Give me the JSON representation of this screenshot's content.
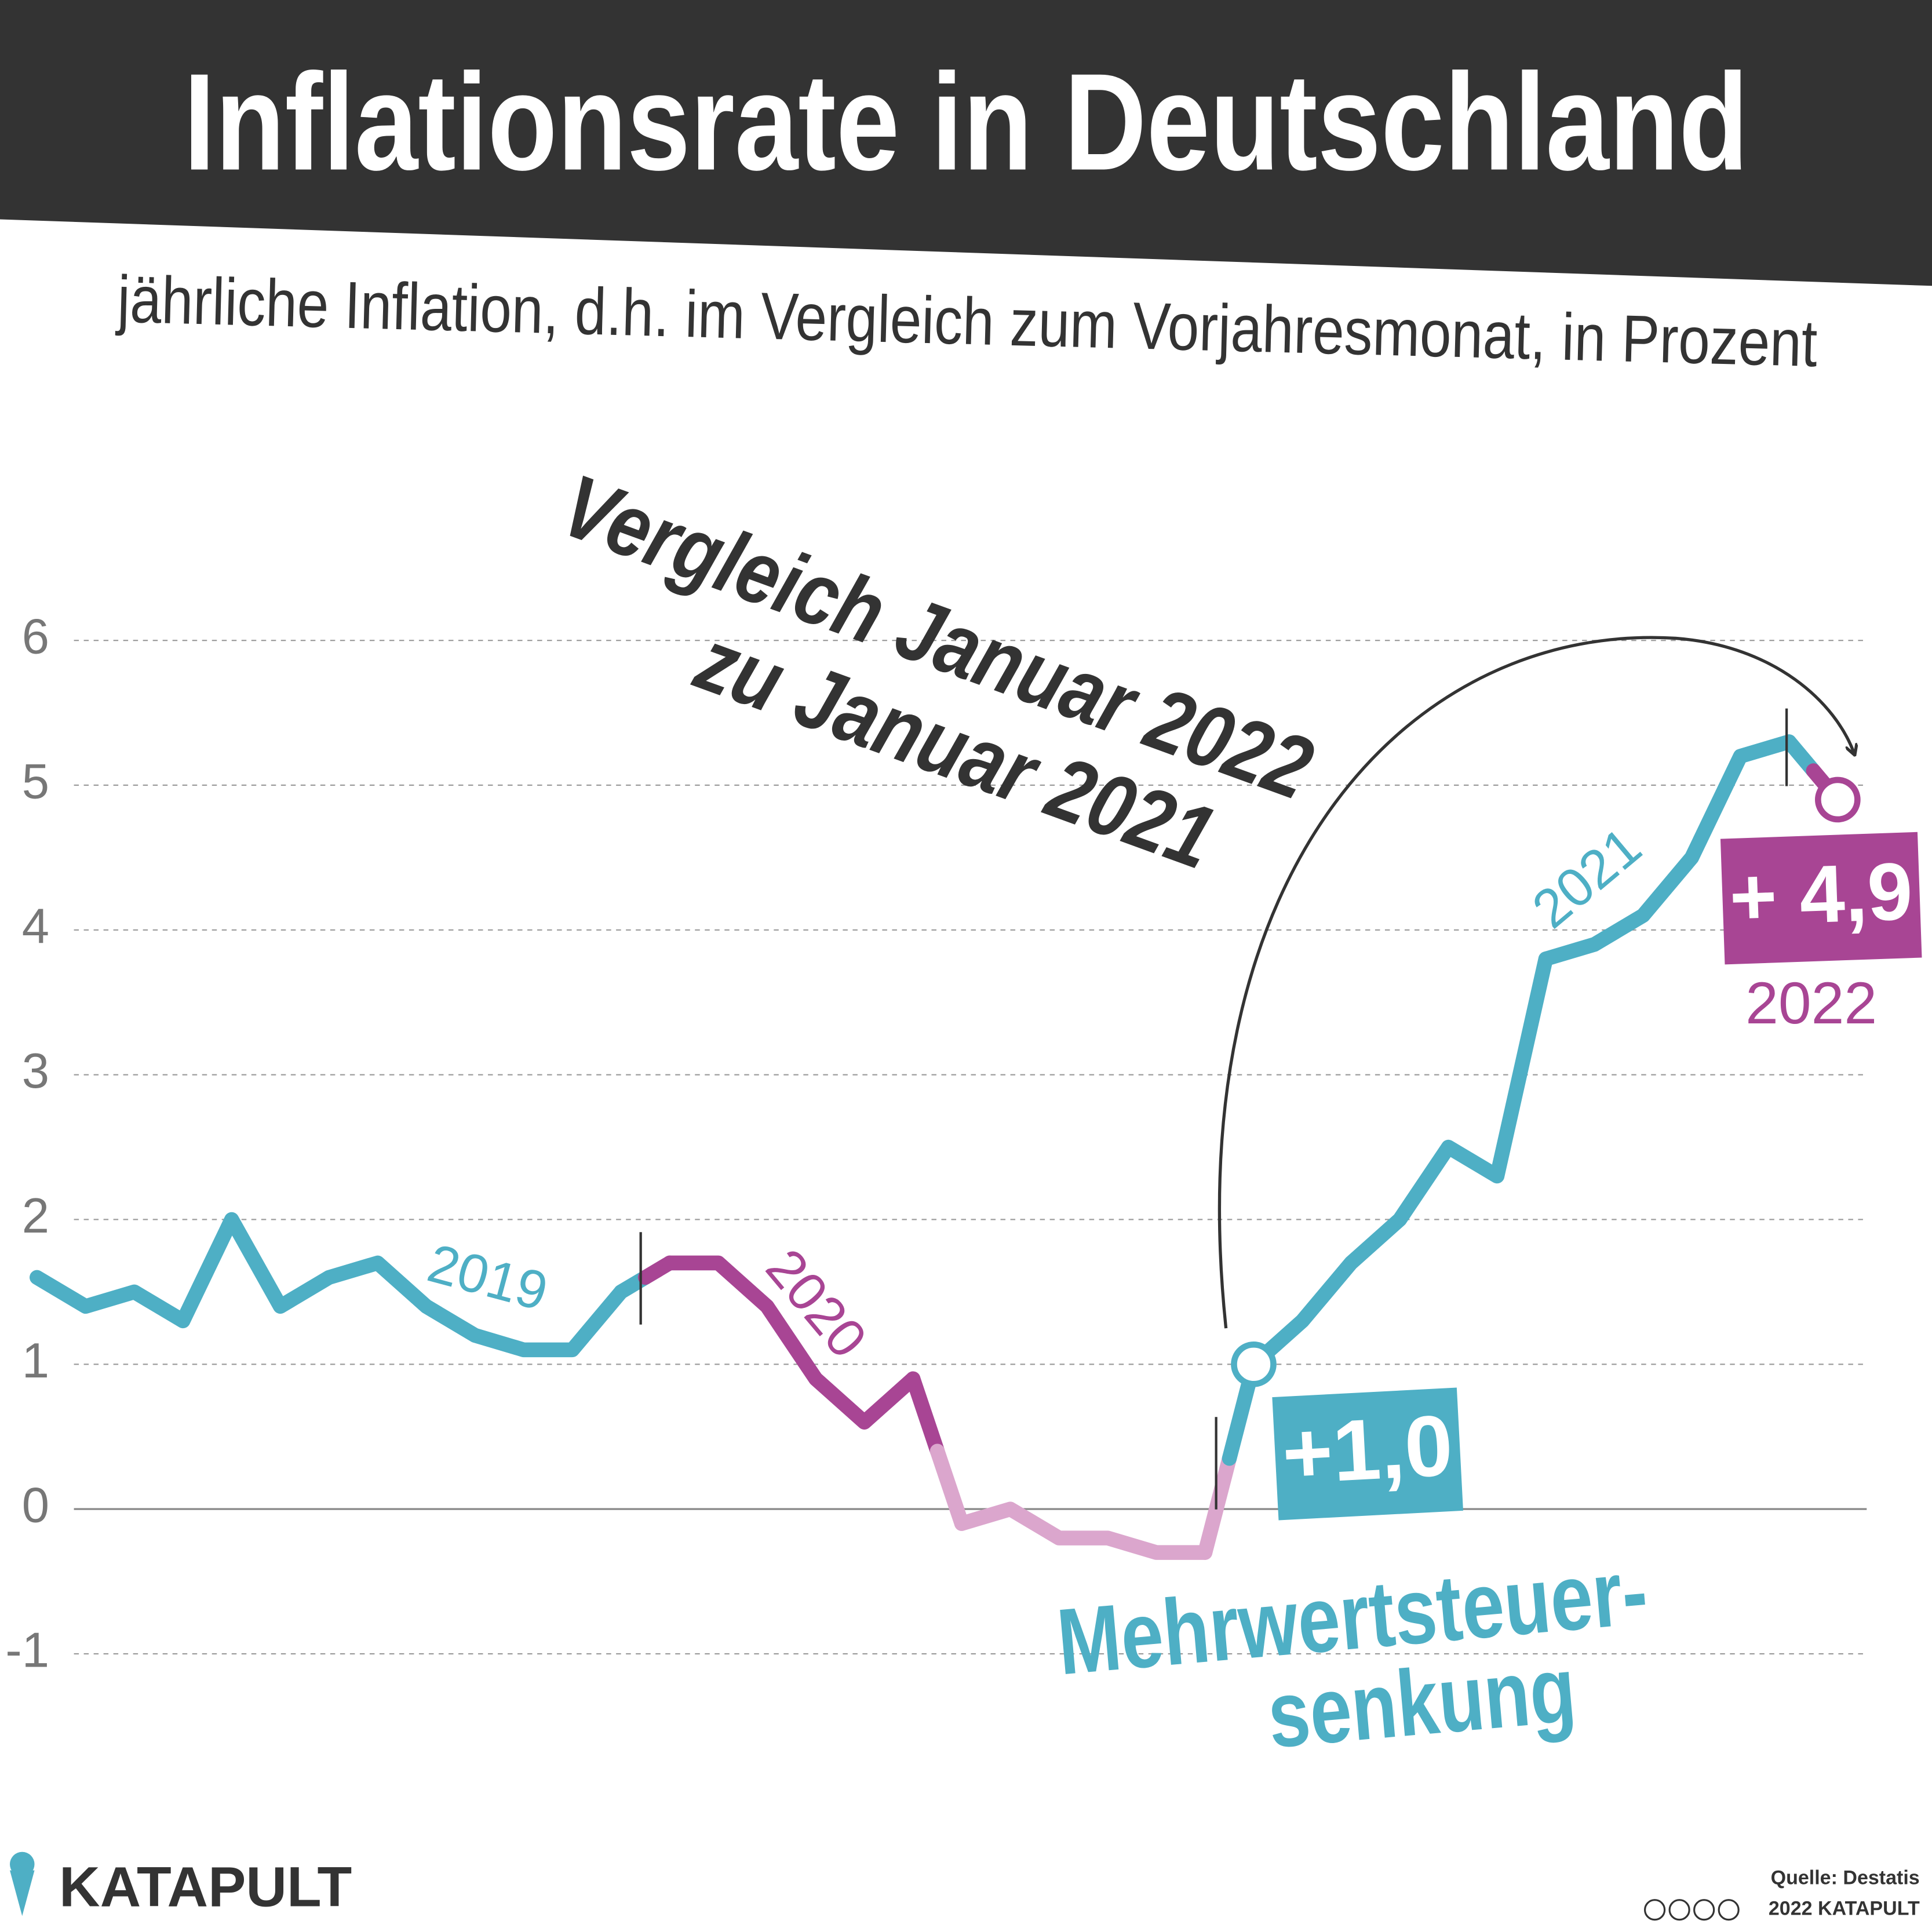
{
  "chart_data": {
    "type": "line",
    "title": "Inflationsrate in Deutschland",
    "subtitle": "jährliche Inflation, d.h. im Vergleich zum Vorjahresmonat, in Prozent",
    "annotations": [
      "Vergleich Januar 2022",
      "zu Januar 2021",
      "2019",
      "2020",
      "2021",
      "2022",
      "Mehrwertsteuer-",
      "senkung"
    ],
    "series": [
      {
        "color": "#4eafc5",
        "values": [
          1.6,
          1.4,
          1.5,
          1.3,
          2.0,
          1.4,
          1.6,
          1.7,
          1.4,
          1.2,
          1.1,
          1.1,
          1.5,
          null,
          null,
          null,
          null,
          null,
          null,
          null,
          null,
          null,
          null,
          null,
          null,
          1.0,
          1.3,
          1.7,
          2.0,
          2.5,
          2.3,
          3.8,
          3.9,
          4.1,
          4.5,
          5.2,
          5.3,
          null
        ],
        "value_labels": [
          null,
          null,
          null,
          null,
          null,
          null,
          null,
          null,
          null,
          null,
          null,
          null,
          null,
          null,
          null,
          null,
          null,
          null,
          null,
          null,
          null,
          null,
          null,
          null,
          null,
          "+1,0",
          null,
          null,
          null,
          null,
          null,
          null,
          null,
          null,
          null,
          null,
          null,
          null
        ]
      },
      {
        "color": "#a84594",
        "values": [
          null,
          null,
          null,
          null,
          null,
          null,
          null,
          null,
          null,
          null,
          null,
          null,
          null,
          1.7,
          1.7,
          1.4,
          0.9,
          0.6,
          0.9,
          null,
          null,
          null,
          null,
          null,
          null,
          null,
          null,
          null,
          null,
          null,
          null,
          null,
          null,
          null,
          null,
          null,
          null,
          4.9
        ],
        "value_labels": [
          null,
          null,
          null,
          null,
          null,
          null,
          null,
          null,
          null,
          null,
          null,
          null,
          null,
          null,
          null,
          null,
          null,
          null,
          null,
          null,
          null,
          null,
          null,
          null,
          null,
          null,
          null,
          null,
          null,
          null,
          null,
          null,
          null,
          null,
          null,
          null,
          null,
          "+ 4,9"
        ]
      },
      {
        "color": "#dba6cd",
        "values": [
          null,
          null,
          null,
          null,
          null,
          null,
          null,
          null,
          null,
          null,
          null,
          null,
          null,
          null,
          null,
          null,
          null,
          null,
          null,
          -0.1,
          0.0,
          -0.2,
          -0.2,
          -0.3,
          -0.3,
          null,
          null,
          null,
          null,
          null,
          null,
          null,
          null,
          null,
          null,
          null,
          null,
          null
        ]
      }
    ],
    "ylim": [
      -1.5,
      6.5
    ],
    "yticks": [
      -1,
      0,
      1,
      2,
      3,
      4,
      5,
      6
    ],
    "grid": true,
    "source": "Quelle: Destatis",
    "credit": "2022 KATAPULT",
    "brand": "KATAPULT"
  }
}
